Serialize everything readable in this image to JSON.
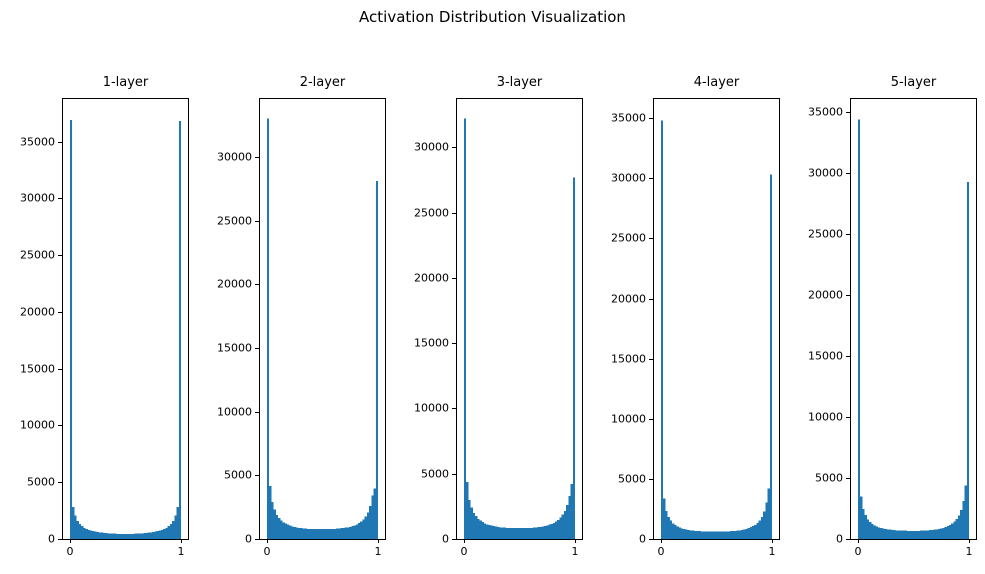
{
  "figure": {
    "title": "Activation Distribution Visualization",
    "background_color": "#ffffff",
    "text_color": "#000000"
  },
  "chart_data": [
    {
      "type": "bar",
      "subtype": "histogram",
      "title": "1-layer",
      "xlabel": "",
      "ylabel": "",
      "bin_start": 0,
      "bin_end": 1,
      "bins": 50,
      "xticks": [
        0,
        1
      ],
      "yticks": [
        0,
        5000,
        10000,
        15000,
        20000,
        25000,
        30000,
        35000
      ],
      "ylim": [
        0,
        38750
      ],
      "grid": false,
      "legend": null,
      "bar_color": "#1f77b4",
      "values": [
        36900,
        2800,
        2050,
        1600,
        1330,
        1130,
        990,
        890,
        810,
        750,
        700,
        660,
        620,
        590,
        560,
        540,
        520,
        505,
        490,
        480,
        470,
        462,
        456,
        452,
        450,
        450,
        452,
        456,
        462,
        470,
        480,
        490,
        505,
        520,
        540,
        560,
        590,
        620,
        660,
        700,
        750,
        810,
        890,
        990,
        1130,
        1330,
        1600,
        2050,
        2800,
        36800
      ]
    },
    {
      "type": "bar",
      "subtype": "histogram",
      "title": "2-layer",
      "xlabel": "",
      "ylabel": "",
      "bin_start": 0,
      "bin_end": 1,
      "bins": 50,
      "xticks": [
        0,
        1
      ],
      "yticks": [
        0,
        5000,
        10000,
        15000,
        20000,
        25000,
        30000
      ],
      "ylim": [
        0,
        34550
      ],
      "grid": false,
      "legend": null,
      "bar_color": "#1f77b4",
      "values": [
        33000,
        4150,
        2900,
        2300,
        1900,
        1650,
        1450,
        1310,
        1200,
        1120,
        1050,
        1000,
        950,
        910,
        880,
        855,
        835,
        820,
        805,
        795,
        785,
        780,
        775,
        772,
        770,
        770,
        772,
        775,
        780,
        788,
        798,
        810,
        825,
        845,
        865,
        890,
        920,
        960,
        1010,
        1070,
        1150,
        1250,
        1380,
        1550,
        1780,
        2100,
        2600,
        3400,
        3950,
        28100
      ]
    },
    {
      "type": "bar",
      "subtype": "histogram",
      "title": "3-layer",
      "xlabel": "",
      "ylabel": "",
      "bin_start": 0,
      "bin_end": 1,
      "bins": 50,
      "xticks": [
        0,
        1
      ],
      "yticks": [
        0,
        5000,
        10000,
        15000,
        20000,
        25000,
        30000
      ],
      "ylim": [
        0,
        33700
      ],
      "grid": false,
      "legend": null,
      "bar_color": "#1f77b4",
      "values": [
        32200,
        4350,
        3000,
        2400,
        2000,
        1750,
        1550,
        1400,
        1290,
        1200,
        1130,
        1070,
        1020,
        980,
        950,
        920,
        900,
        880,
        865,
        855,
        845,
        840,
        835,
        832,
        830,
        830,
        832,
        836,
        842,
        850,
        860,
        872,
        888,
        908,
        932,
        960,
        995,
        1040,
        1095,
        1160,
        1240,
        1340,
        1470,
        1640,
        1860,
        2160,
        2600,
        3300,
        4200,
        27700
      ]
    },
    {
      "type": "bar",
      "subtype": "histogram",
      "title": "4-layer",
      "xlabel": "",
      "ylabel": "",
      "bin_start": 0,
      "bin_end": 1,
      "bins": 50,
      "xticks": [
        0,
        1
      ],
      "yticks": [
        0,
        5000,
        10000,
        15000,
        20000,
        25000,
        30000,
        35000
      ],
      "ylim": [
        0,
        36600
      ],
      "grid": false,
      "legend": null,
      "bar_color": "#1f77b4",
      "values": [
        34800,
        3350,
        2350,
        1850,
        1520,
        1300,
        1150,
        1040,
        950,
        880,
        830,
        790,
        755,
        725,
        700,
        680,
        662,
        648,
        636,
        626,
        618,
        612,
        608,
        605,
        604,
        604,
        606,
        610,
        616,
        624,
        634,
        647,
        662,
        680,
        702,
        728,
        760,
        800,
        848,
        906,
        978,
        1068,
        1185,
        1340,
        1550,
        1850,
        2300,
        3050,
        4200,
        30300
      ]
    },
    {
      "type": "bar",
      "subtype": "histogram",
      "title": "5-layer",
      "xlabel": "",
      "ylabel": "",
      "bin_start": 0,
      "bin_end": 1,
      "bins": 50,
      "xticks": [
        0,
        1
      ],
      "yticks": [
        0,
        5000,
        10000,
        15000,
        20000,
        25000,
        30000,
        35000
      ],
      "ylim": [
        0,
        36100
      ],
      "grid": false,
      "legend": null,
      "bar_color": "#1f77b4",
      "values": [
        34400,
        3500,
        2450,
        1950,
        1620,
        1400,
        1240,
        1120,
        1030,
        960,
        905,
        860,
        825,
        795,
        770,
        748,
        730,
        715,
        703,
        693,
        685,
        679,
        675,
        672,
        671,
        671,
        673,
        677,
        683,
        691,
        701,
        714,
        730,
        749,
        772,
        799,
        832,
        872,
        920,
        979,
        1052,
        1144,
        1262,
        1418,
        1630,
        1930,
        2380,
        3100,
        4400,
        29300
      ]
    }
  ]
}
